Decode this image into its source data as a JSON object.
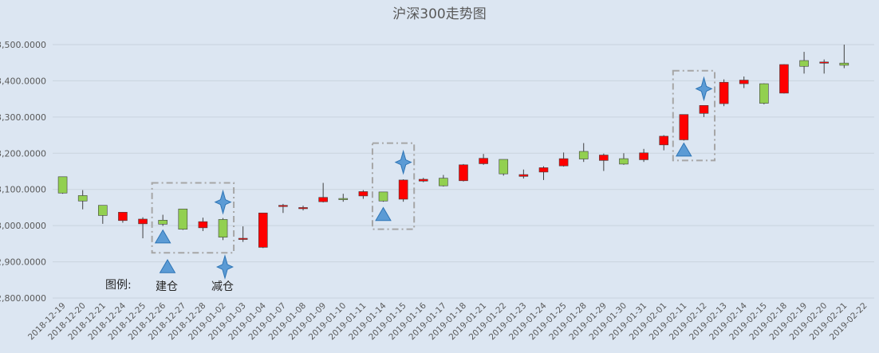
{
  "chart_data": {
    "type": "candlestick",
    "title": "沪深300走势图",
    "ylim": [
      2800,
      3500
    ],
    "yticks": [
      2800,
      2900,
      3000,
      3100,
      3200,
      3300,
      3400,
      3500
    ],
    "ytick_labels": [
      "2,800.0000",
      "2,900.0000",
      "3,000.0000",
      "3,100.0000",
      "3,200.0000",
      "3,300.0000",
      "3,400.0000",
      "3,500.0000"
    ],
    "grid": true,
    "colors": {
      "up": "#ff0000",
      "down": "#92d050",
      "wick": "#404040",
      "marker": "#5b9bd5",
      "marker_edge": "#2e75b6",
      "box": "#a6a6a6"
    },
    "candles": [
      {
        "date": "2018-12-19",
        "open": 3135,
        "close": 3090,
        "high": 3135,
        "low": 3088
      },
      {
        "date": "2018-12-20",
        "open": 3083,
        "close": 3068,
        "high": 3098,
        "low": 3045
      },
      {
        "date": "2018-12-21",
        "open": 3056,
        "close": 3028,
        "high": 3056,
        "low": 3005
      },
      {
        "date": "2018-12-24",
        "open": 3014,
        "close": 3037,
        "high": 3037,
        "low": 3008
      },
      {
        "date": "2018-12-25",
        "open": 3005,
        "close": 3018,
        "high": 3023,
        "low": 2965
      },
      {
        "date": "2018-12-26",
        "open": 3015,
        "close": 3004,
        "high": 3030,
        "low": 2999
      },
      {
        "date": "2018-12-27",
        "open": 3046,
        "close": 2990,
        "high": 3046,
        "low": 2988
      },
      {
        "date": "2018-12-28",
        "open": 2994,
        "close": 3011,
        "high": 3022,
        "low": 2985
      },
      {
        "date": "2019-01-02",
        "open": 3017,
        "close": 2968,
        "high": 3021,
        "low": 2960
      },
      {
        "date": "2019-01-03",
        "open": 2963,
        "close": 2965,
        "high": 2998,
        "low": 2955
      },
      {
        "date": "2019-01-04",
        "open": 2940,
        "close": 3035,
        "high": 3035,
        "low": 2938
      },
      {
        "date": "2019-01-07",
        "open": 3053,
        "close": 3056,
        "high": 3060,
        "low": 3035
      },
      {
        "date": "2019-01-08",
        "open": 3048,
        "close": 3050,
        "high": 3055,
        "low": 3042
      },
      {
        "date": "2019-01-09",
        "open": 3066,
        "close": 3078,
        "high": 3118,
        "low": 3064
      },
      {
        "date": "2019-01-10",
        "open": 3075,
        "close": 3072,
        "high": 3088,
        "low": 3066
      },
      {
        "date": "2019-01-11",
        "open": 3082,
        "close": 3094,
        "high": 3098,
        "low": 3074
      },
      {
        "date": "2019-01-14",
        "open": 3093,
        "close": 3068,
        "high": 3093,
        "low": 3066
      },
      {
        "date": "2019-01-15",
        "open": 3073,
        "close": 3126,
        "high": 3128,
        "low": 3066
      },
      {
        "date": "2019-01-16",
        "open": 3123,
        "close": 3128,
        "high": 3132,
        "low": 3120
      },
      {
        "date": "2019-01-17",
        "open": 3131,
        "close": 3110,
        "high": 3140,
        "low": 3108
      },
      {
        "date": "2019-01-18",
        "open": 3124,
        "close": 3168,
        "high": 3170,
        "low": 3122
      },
      {
        "date": "2019-01-21",
        "open": 3171,
        "close": 3186,
        "high": 3198,
        "low": 3168
      },
      {
        "date": "2019-01-22",
        "open": 3183,
        "close": 3143,
        "high": 3183,
        "low": 3138
      },
      {
        "date": "2019-01-23",
        "open": 3136,
        "close": 3141,
        "high": 3155,
        "low": 3130
      },
      {
        "date": "2019-01-24",
        "open": 3148,
        "close": 3160,
        "high": 3164,
        "low": 3126
      },
      {
        "date": "2019-01-25",
        "open": 3165,
        "close": 3185,
        "high": 3202,
        "low": 3163
      },
      {
        "date": "2019-01-28",
        "open": 3205,
        "close": 3184,
        "high": 3228,
        "low": 3176
      },
      {
        "date": "2019-01-29",
        "open": 3180,
        "close": 3195,
        "high": 3199,
        "low": 3151
      },
      {
        "date": "2019-01-30",
        "open": 3185,
        "close": 3170,
        "high": 3200,
        "low": 3168
      },
      {
        "date": "2019-01-31",
        "open": 3182,
        "close": 3201,
        "high": 3212,
        "low": 3176
      },
      {
        "date": "2019-02-01",
        "open": 3223,
        "close": 3247,
        "high": 3250,
        "low": 3208
      },
      {
        "date": "2019-02-11",
        "open": 3237,
        "close": 3307,
        "high": 3307,
        "low": 3235
      },
      {
        "date": "2019-02-12",
        "open": 3310,
        "close": 3332,
        "high": 3332,
        "low": 3300
      },
      {
        "date": "2019-02-13",
        "open": 3337,
        "close": 3396,
        "high": 3404,
        "low": 3330
      },
      {
        "date": "2019-02-14",
        "open": 3392,
        "close": 3402,
        "high": 3412,
        "low": 3380
      },
      {
        "date": "2019-02-15",
        "open": 3392,
        "close": 3338,
        "high": 3393,
        "low": 3335
      },
      {
        "date": "2019-02-18",
        "open": 3366,
        "close": 3445,
        "high": 3446,
        "low": 3365
      },
      {
        "date": "2019-02-19",
        "open": 3456,
        "close": 3440,
        "high": 3480,
        "low": 3420
      },
      {
        "date": "2019-02-20",
        "open": 3450,
        "close": 3452,
        "high": 3459,
        "low": 3420
      },
      {
        "date": "2019-02-21",
        "open": 3449,
        "close": 3443,
        "high": 3500,
        "low": 3435
      },
      {
        "date": "2019-02-22",
        "open": null,
        "close": null,
        "high": null,
        "low": null
      }
    ],
    "buy_markers": [
      {
        "date": "2018-12-26",
        "value": 2968
      },
      {
        "date": "2019-01-14",
        "value": 3030
      },
      {
        "date": "2019-02-11",
        "value": 3208
      }
    ],
    "sell_markers": [
      {
        "date": "2019-01-02",
        "value": 3065
      },
      {
        "date": "2019-01-15",
        "value": 3175
      },
      {
        "date": "2019-02-12",
        "value": 3378
      }
    ],
    "highlight_boxes": [
      {
        "from": "2018-12-26",
        "to": "2019-01-02",
        "low": 2925,
        "high": 3118
      },
      {
        "from": "2019-01-14",
        "to": "2019-01-15",
        "low": 2990,
        "high": 3228
      },
      {
        "from": "2019-02-11",
        "to": "2019-02-12",
        "low": 3180,
        "high": 3428
      }
    ],
    "legend": {
      "label": "图例:",
      "buy_label": "建仓",
      "sell_label": "减仓"
    }
  }
}
